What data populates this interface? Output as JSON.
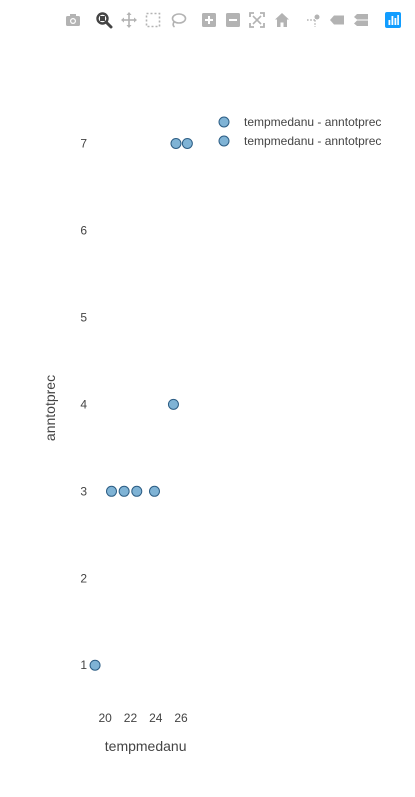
{
  "modebar": {
    "buttons": [
      {
        "name": "camera-icon",
        "active": false
      },
      {
        "name": "zoom-icon",
        "active": true
      },
      {
        "name": "pan-icon",
        "active": false
      },
      {
        "name": "box-select-icon",
        "active": false
      },
      {
        "name": "lasso-select-icon",
        "active": false
      },
      {
        "name": "zoom-in-icon",
        "active": false
      },
      {
        "name": "zoom-out-icon",
        "active": false
      },
      {
        "name": "autoscale-icon",
        "active": false
      },
      {
        "name": "home-icon",
        "active": false
      },
      {
        "name": "spike-lines-icon",
        "active": false
      },
      {
        "name": "hover-closest-icon",
        "active": false
      },
      {
        "name": "hover-compare-icon",
        "active": false
      },
      {
        "name": "plotly-logo-icon",
        "active": false
      }
    ],
    "icon_color": "#b3b3b3",
    "active_color": "#444444",
    "logo_color": "#119dff"
  },
  "chart_data": {
    "type": "scatter",
    "xlabel": "tempmedanu",
    "ylabel": "anntotprec",
    "x_ticks": [
      "20",
      "22",
      "24",
      "26"
    ],
    "y_ticks": [
      "1",
      "2",
      "3",
      "4",
      "5",
      "6",
      "7"
    ],
    "xlim": [
      18.8,
      27.5
    ],
    "ylim": [
      0.6,
      7.5
    ],
    "grid": false,
    "legend_position": "top-right",
    "marker_color": "#7fb3d5",
    "marker_edge_color": "#2c5d84",
    "series": [
      {
        "name": "tempmedanu - anntotprec",
        "x": [
          19.2,
          20.5,
          21.5,
          22.5,
          23.9,
          25.4,
          25.6,
          26.5
        ],
        "y": [
          1,
          3,
          3,
          3,
          3,
          4,
          7,
          7
        ]
      },
      {
        "name": "tempmedanu - anntotprec",
        "x": [],
        "y": []
      }
    ]
  }
}
